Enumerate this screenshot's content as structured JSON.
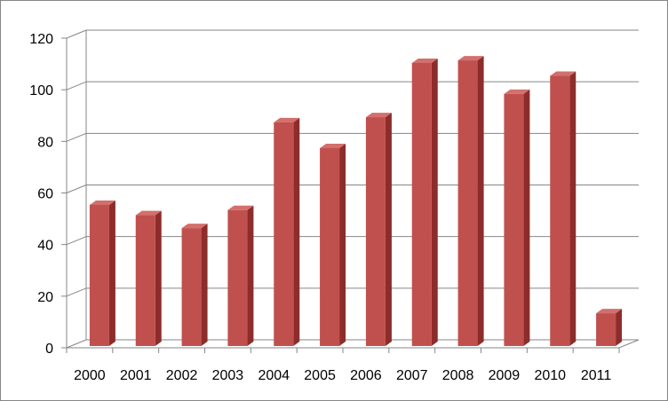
{
  "chart_data": {
    "type": "bar",
    "categories": [
      "2000",
      "2001",
      "2002",
      "2003",
      "2004",
      "2005",
      "2006",
      "2007",
      "2008",
      "2009",
      "2010",
      "2011"
    ],
    "values": [
      54,
      50,
      45,
      52,
      86,
      76,
      88,
      109,
      110,
      97,
      104,
      12
    ],
    "ylim": [
      0,
      120
    ],
    "yticks": [
      0,
      20,
      40,
      60,
      80,
      100,
      120
    ],
    "grid": true,
    "style": "3d-column",
    "colors": {
      "bar_front": "#C0504D",
      "bar_side": "#8C2D2B",
      "bar_top": "#D36F6C",
      "grid": "#868686"
    }
  }
}
